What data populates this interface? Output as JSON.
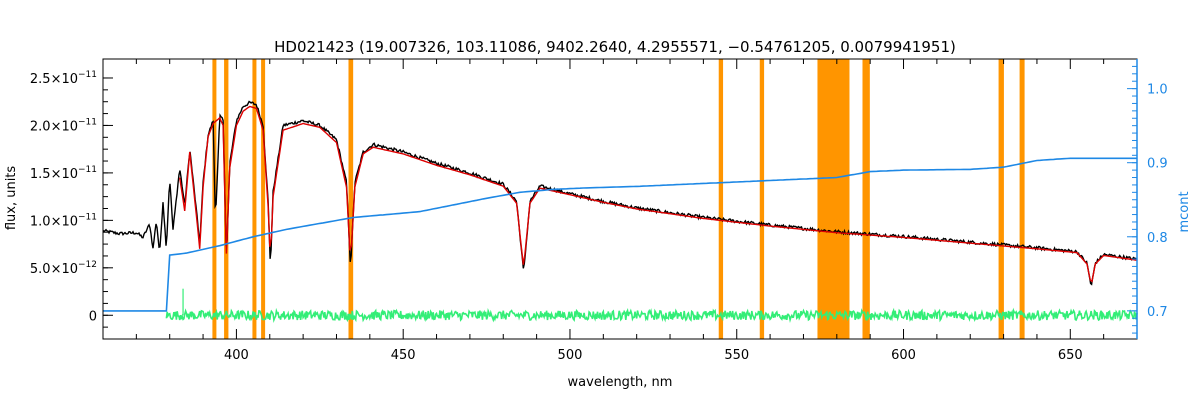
{
  "chart_data": {
    "type": "line",
    "title": "HD021423    (19.007326, 103.11086, 9402.2640, 4.2955571, −0.54761205, 0.0079941951)",
    "xlabel": "wavelength, nm",
    "ylabel": "flux, units",
    "y2label": "mcont",
    "xlim": [
      360,
      670
    ],
    "ylim": [
      -2.5e-12,
      2.7e-11
    ],
    "y2lim": [
      0.662,
      1.04
    ],
    "x_ticks": [
      400,
      450,
      500,
      550,
      600,
      650
    ],
    "x_tick_labels": [
      "400",
      "450",
      "500",
      "550",
      "600",
      "650"
    ],
    "y_ticks": [
      0,
      5e-12,
      1e-11,
      1.5e-11,
      2e-11,
      2.5e-11
    ],
    "y_tick_labels": [
      {
        "mant": "0",
        "exp": ""
      },
      {
        "mant": "5.0×10",
        "exp": "−12"
      },
      {
        "mant": "1.0×10",
        "exp": "−11"
      },
      {
        "mant": "1.5×10",
        "exp": "−11"
      },
      {
        "mant": "2.0×10",
        "exp": "−11"
      },
      {
        "mant": "2.5×10",
        "exp": "−11"
      }
    ],
    "y2_ticks": [
      0.7,
      0.8,
      0.9,
      1.0
    ],
    "y2_tick_labels": [
      "0.7",
      "0.8",
      "0.9",
      "1.0"
    ],
    "masked_regions": [
      [
        392.8,
        394.0
      ],
      [
        396.3,
        397.6
      ],
      [
        404.8,
        406.0
      ],
      [
        407.4,
        408.6
      ],
      [
        433.6,
        435.0
      ],
      [
        544.6,
        545.9
      ],
      [
        556.9,
        558.2
      ],
      [
        574.2,
        583.8
      ],
      [
        587.7,
        589.9
      ],
      [
        628.5,
        630.1
      ],
      [
        634.8,
        636.3
      ]
    ],
    "series": [
      {
        "role": "observed",
        "points": [
          [
            360,
            8.9e-12
          ],
          [
            365,
            8.6e-12
          ],
          [
            370,
            8.7e-12
          ],
          [
            372,
            8.2e-12
          ],
          [
            374,
            9.6e-12
          ],
          [
            375,
            7e-12
          ],
          [
            376,
            1e-11
          ],
          [
            377,
            6.5e-12
          ],
          [
            378,
            1.2e-11
          ],
          [
            379,
            7e-12
          ],
          [
            380,
            1.45e-11
          ],
          [
            381,
            9e-12
          ],
          [
            383,
            1.55e-11
          ],
          [
            384.5,
            1.15e-11
          ],
          [
            386,
            1.75e-11
          ],
          [
            388,
            1.1e-11
          ],
          [
            389,
            7.5e-12
          ],
          [
            390,
            1.4e-11
          ],
          [
            391.5,
            1.9e-11
          ],
          [
            393,
            2.05e-11
          ],
          [
            393.7,
            1e-11
          ],
          [
            395,
            2.1e-11
          ],
          [
            396,
            2.05e-11
          ],
          [
            397,
            6e-12
          ],
          [
            398,
            1.6e-11
          ],
          [
            400,
            2.05e-11
          ],
          [
            402,
            2.2e-11
          ],
          [
            404,
            2.24e-11
          ],
          [
            406,
            2.22e-11
          ],
          [
            408,
            2e-11
          ],
          [
            409.5,
            1.2e-11
          ],
          [
            410.2,
            5e-12
          ],
          [
            411,
            1.3e-11
          ],
          [
            414,
            2e-11
          ],
          [
            420,
            2.05e-11
          ],
          [
            425,
            2e-11
          ],
          [
            430,
            1.85e-11
          ],
          [
            433,
            1.4e-11
          ],
          [
            434.2,
            5e-12
          ],
          [
            435.5,
            1.4e-11
          ],
          [
            438,
            1.72e-11
          ],
          [
            441,
            1.8e-11
          ],
          [
            450,
            1.72e-11
          ],
          [
            460,
            1.6e-11
          ],
          [
            470,
            1.5e-11
          ],
          [
            480,
            1.38e-11
          ],
          [
            484,
            1.2e-11
          ],
          [
            486.1,
            4.5e-12
          ],
          [
            488,
            1.2e-11
          ],
          [
            491,
            1.36e-11
          ],
          [
            500,
            1.28e-11
          ],
          [
            510,
            1.2e-11
          ],
          [
            520,
            1.13e-11
          ],
          [
            540,
            1.03e-11
          ],
          [
            560,
            9.5e-12
          ],
          [
            580,
            8.8e-12
          ],
          [
            600,
            8.3e-12
          ],
          [
            620,
            7.7e-12
          ],
          [
            640,
            7.1e-12
          ],
          [
            652,
            6.7e-12
          ],
          [
            655,
            5.5e-12
          ],
          [
            656.3,
            3e-12
          ],
          [
            657.5,
            5.5e-12
          ],
          [
            660,
            6.4e-12
          ],
          [
            670,
            5.9e-12
          ]
        ]
      },
      {
        "role": "model",
        "points": [
          [
            383,
            1.45e-11
          ],
          [
            384.5,
            1.1e-11
          ],
          [
            386,
            1.72e-11
          ],
          [
            388,
            1.05e-11
          ],
          [
            389,
            7e-12
          ],
          [
            390,
            1.35e-11
          ],
          [
            391.5,
            1.88e-11
          ],
          [
            393,
            2.02e-11
          ],
          [
            395,
            2.08e-11
          ],
          [
            396,
            2e-11
          ],
          [
            397,
            6.5e-12
          ],
          [
            398,
            1.55e-11
          ],
          [
            400,
            2e-11
          ],
          [
            402,
            2.15e-11
          ],
          [
            404,
            2.2e-11
          ],
          [
            406,
            2.18e-11
          ],
          [
            408,
            1.95e-11
          ],
          [
            409.5,
            1.15e-11
          ],
          [
            410.2,
            5.5e-12
          ],
          [
            411,
            1.25e-11
          ],
          [
            414,
            1.95e-11
          ],
          [
            420,
            2.02e-11
          ],
          [
            425,
            1.98e-11
          ],
          [
            430,
            1.82e-11
          ],
          [
            433,
            1.35e-11
          ],
          [
            434.2,
            5.5e-12
          ],
          [
            435.5,
            1.35e-11
          ],
          [
            438,
            1.7e-11
          ],
          [
            441,
            1.77e-11
          ],
          [
            450,
            1.7e-11
          ],
          [
            460,
            1.58e-11
          ],
          [
            470,
            1.48e-11
          ],
          [
            480,
            1.36e-11
          ],
          [
            484,
            1.18e-11
          ],
          [
            486.1,
            5e-12
          ],
          [
            488,
            1.18e-11
          ],
          [
            491,
            1.34e-11
          ],
          [
            500,
            1.27e-11
          ],
          [
            510,
            1.19e-11
          ],
          [
            520,
            1.12e-11
          ],
          [
            540,
            1.02e-11
          ],
          [
            560,
            9.4e-12
          ],
          [
            580,
            8.7e-12
          ],
          [
            600,
            8.2e-12
          ],
          [
            620,
            7.6e-12
          ],
          [
            640,
            7e-12
          ],
          [
            652,
            6.6e-12
          ],
          [
            655,
            5.4e-12
          ],
          [
            656.3,
            3.2e-12
          ],
          [
            657.5,
            5.4e-12
          ],
          [
            660,
            6.3e-12
          ],
          [
            670,
            5.8e-12
          ]
        ]
      },
      {
        "role": "residual",
        "axis": "left",
        "x_range": [
          379,
          670
        ],
        "y_level": 0,
        "noise_amplitude": 5e-13,
        "spike": {
          "x": 384,
          "y": 2.8e-12
        }
      },
      {
        "role": "continuum",
        "axis": "right",
        "points": [
          [
            360,
            0.7
          ],
          [
            379,
            0.7
          ],
          [
            379.5,
            0.775
          ],
          [
            385,
            0.778
          ],
          [
            395,
            0.788
          ],
          [
            405,
            0.8
          ],
          [
            415,
            0.81
          ],
          [
            425,
            0.818
          ],
          [
            435,
            0.826
          ],
          [
            445,
            0.83
          ],
          [
            455,
            0.834
          ],
          [
            465,
            0.843
          ],
          [
            475,
            0.852
          ],
          [
            485,
            0.86
          ],
          [
            495,
            0.864
          ],
          [
            505,
            0.866
          ],
          [
            520,
            0.868
          ],
          [
            540,
            0.872
          ],
          [
            560,
            0.876
          ],
          [
            580,
            0.88
          ],
          [
            590,
            0.888
          ],
          [
            600,
            0.89
          ],
          [
            620,
            0.891
          ],
          [
            630,
            0.894
          ],
          [
            640,
            0.903
          ],
          [
            650,
            0.906
          ],
          [
            670,
            0.906
          ]
        ]
      }
    ],
    "colors": {
      "observed": "#000000",
      "model": "#dd0000",
      "residual": "#33ee77",
      "continuum": "#1e88e5",
      "masked": "#ff9500",
      "right_axis": "#1e88e5",
      "axis": "#000000"
    }
  }
}
